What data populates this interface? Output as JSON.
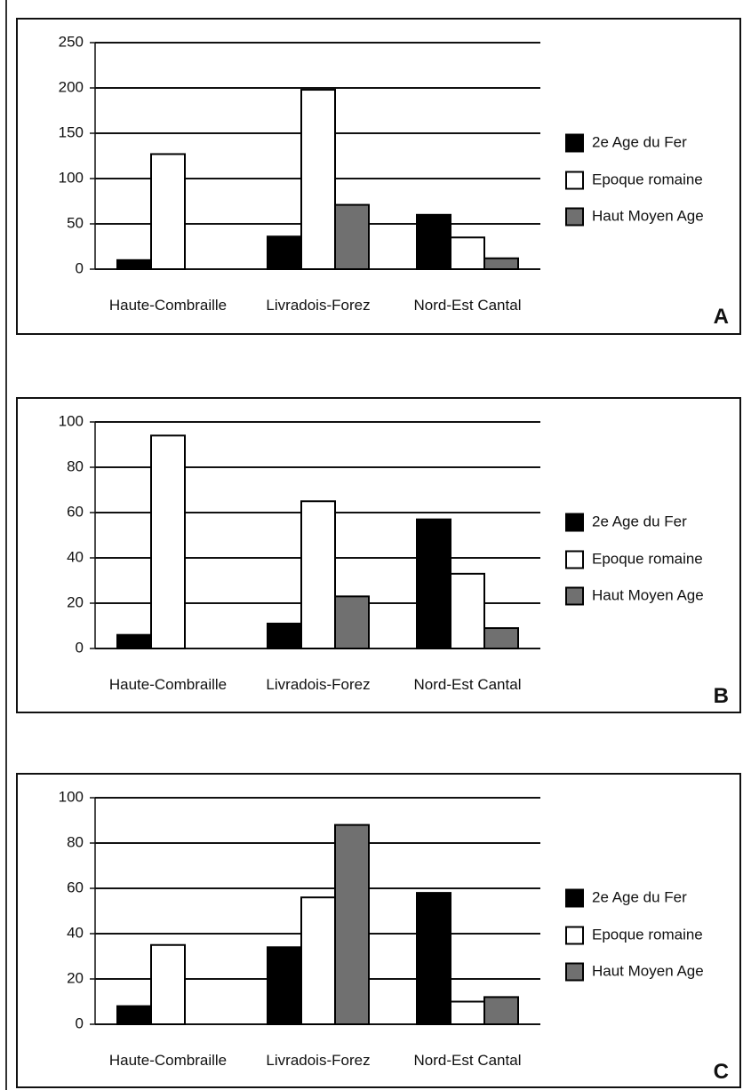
{
  "chart_data": [
    {
      "type": "bar",
      "panel_label": "A",
      "categories": [
        "Haute-Combraille",
        "Livradois-Forez",
        "Nord-Est Cantal"
      ],
      "series": [
        {
          "name": "2e Age du Fer",
          "color": "#000000",
          "values": [
            10,
            36,
            60
          ]
        },
        {
          "name": "Epoque romaine",
          "color": "#ffffff",
          "values": [
            127,
            198,
            35
          ]
        },
        {
          "name": "Haut Moyen Age",
          "color": "#707070",
          "values": [
            0,
            71,
            12
          ]
        }
      ],
      "ylim": [
        0,
        250
      ],
      "yticks": [
        "0",
        "50",
        "100",
        "150",
        "200",
        "250"
      ],
      "grid": true,
      "legend": "right"
    },
    {
      "type": "bar",
      "panel_label": "B",
      "categories": [
        "Haute-Combraille",
        "Livradois-Forez",
        "Nord-Est Cantal"
      ],
      "series": [
        {
          "name": "2e Age du Fer",
          "color": "#000000",
          "values": [
            6,
            11,
            57
          ]
        },
        {
          "name": "Epoque romaine",
          "color": "#ffffff",
          "values": [
            94,
            65,
            33
          ]
        },
        {
          "name": "Haut Moyen Age",
          "color": "#707070",
          "values": [
            0,
            23,
            9
          ]
        }
      ],
      "ylim": [
        0,
        100
      ],
      "yticks": [
        "0",
        "20",
        "40",
        "60",
        "80",
        "100"
      ],
      "grid": true,
      "legend": "right"
    },
    {
      "type": "bar",
      "panel_label": "C",
      "categories": [
        "Haute-Combraille",
        "Livradois-Forez",
        "Nord-Est Cantal"
      ],
      "series": [
        {
          "name": "2e Age du Fer",
          "color": "#000000",
          "values": [
            8,
            34,
            58
          ]
        },
        {
          "name": "Epoque romaine",
          "color": "#ffffff",
          "values": [
            35,
            56,
            10
          ]
        },
        {
          "name": "Haut Moyen Age",
          "color": "#707070",
          "values": [
            0,
            88,
            12
          ]
        }
      ],
      "ylim": [
        0,
        100
      ],
      "yticks": [
        "0",
        "20",
        "40",
        "60",
        "80",
        "100"
      ],
      "grid": true,
      "legend": "right"
    }
  ]
}
